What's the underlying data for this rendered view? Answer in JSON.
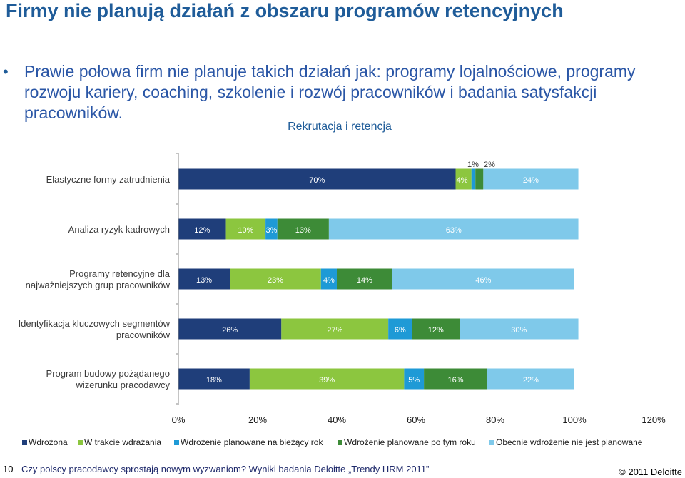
{
  "page": {
    "title": "Firmy nie planują działań z obszaru programów retencyjnych",
    "bullet": "Prawie połowa firm nie planuje takich działań jak: programy lojalnościowe, programy rozwoju kariery, coaching, szkolenie i rozwój pracowników i badania satysfakcji pracowników.",
    "page_number": "10",
    "footer": "Czy polscy pracodawcy sprostają nowym wyzwaniom? Wyniki badania Deloitte „Trendy HRM 2011”",
    "copyright": "© 2011 Deloitte"
  },
  "chart_data": {
    "type": "bar",
    "orientation": "horizontal",
    "stacked": true,
    "title": "Rekrutacja i retencja",
    "categories": [
      [
        "Elastyczne formy zatrudnienia"
      ],
      [
        "Analiza ryzyk kadrowych"
      ],
      [
        "Programy retencyjne dla",
        "najważniejszych grup pracowników"
      ],
      [
        "Identyfikacja kluczowych segmentów",
        "pracowników"
      ],
      [
        "Program budowy pożądanego",
        "wizerunku pracodawcy"
      ]
    ],
    "series": [
      {
        "name": "Wdrożona",
        "color": "#1f3e7a",
        "values": [
          70,
          12,
          13,
          26,
          18
        ]
      },
      {
        "name": "W trakcie wdrażania",
        "color": "#8cc63f",
        "values": [
          4,
          10,
          23,
          27,
          39
        ]
      },
      {
        "name": "Wdrożenie planowane na bieżący rok",
        "color": "#1e9ad6",
        "values": [
          1,
          3,
          4,
          6,
          5
        ]
      },
      {
        "name": "Wdrożenie planowane po tym roku",
        "color": "#3d8b37",
        "values": [
          2,
          13,
          14,
          12,
          16
        ]
      },
      {
        "name": "Obecnie wdrożenie nie jest planowane",
        "color": "#7fc9ea",
        "values": [
          24,
          63,
          46,
          30,
          22
        ]
      }
    ],
    "data_labels": [
      [
        "70%",
        "4%",
        "1%",
        "2%",
        "24%"
      ],
      [
        "12%",
        "10%",
        "3%",
        "13%",
        "63%"
      ],
      [
        "13%",
        "23%",
        "4%",
        "14%",
        "46%"
      ],
      [
        "26%",
        "27%",
        "6%",
        "12%",
        "30%"
      ],
      [
        "18%",
        "39%",
        "5%",
        "16%",
        "22%"
      ]
    ],
    "x_ticks": [
      "0%",
      "20%",
      "40%",
      "60%",
      "80%",
      "100%",
      "120%"
    ],
    "xlim": [
      0,
      120
    ],
    "legend_position": "bottom"
  }
}
